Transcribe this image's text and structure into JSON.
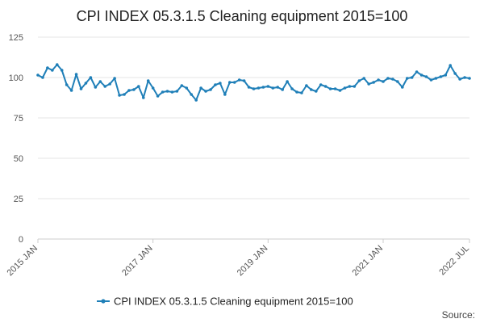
{
  "chart_data": {
    "type": "line",
    "title": "CPI INDEX 05.3.1.5 Cleaning equipment 2015=100",
    "xlabel": "",
    "ylabel": "",
    "ylim": [
      0,
      125
    ],
    "yticks": [
      0,
      25,
      50,
      75,
      100,
      125
    ],
    "x_tick_labels": [
      {
        "label": "2015 JAN",
        "index": 0
      },
      {
        "label": "2017 JAN",
        "index": 24
      },
      {
        "label": "2019 JAN",
        "index": 48
      },
      {
        "label": "2021 JAN",
        "index": 72
      },
      {
        "label": "2022 JUL",
        "index": 90
      }
    ],
    "grid": true,
    "legend_position": "bottom",
    "color": "#1f7fb8",
    "series": [
      {
        "name": "CPI INDEX 05.3.1.5 Cleaning equipment 2015=100",
        "x_start": "2015 JAN",
        "x_end": "2022 JUL",
        "values": [
          101.5,
          100,
          106,
          104.5,
          108,
          104.5,
          95.5,
          92,
          102,
          93,
          96.5,
          100,
          94,
          97.5,
          94.5,
          96,
          99.5,
          89,
          89.5,
          92,
          92.5,
          94.5,
          87.5,
          98,
          93.5,
          88.5,
          91,
          91.5,
          91,
          91.5,
          95,
          93.5,
          89.5,
          86,
          93.5,
          91.5,
          92.5,
          95.5,
          96.5,
          89.5,
          97,
          97,
          98.5,
          98,
          94,
          93,
          93.5,
          94,
          94.5,
          93.5,
          94,
          92.5,
          97.5,
          93,
          91,
          90.5,
          95,
          92.5,
          91.5,
          95.5,
          94.5,
          93,
          93,
          92,
          93.5,
          94.5,
          94.5,
          98,
          99.5,
          96,
          97,
          98.5,
          97.5,
          99.5,
          99,
          97.5,
          94,
          99.5,
          100,
          103.5,
          101.5,
          100.5,
          98.5,
          99.5,
          100.5,
          101.5,
          107.5,
          102.5,
          99,
          100,
          99.5
        ]
      }
    ]
  },
  "source_label": "Source:"
}
